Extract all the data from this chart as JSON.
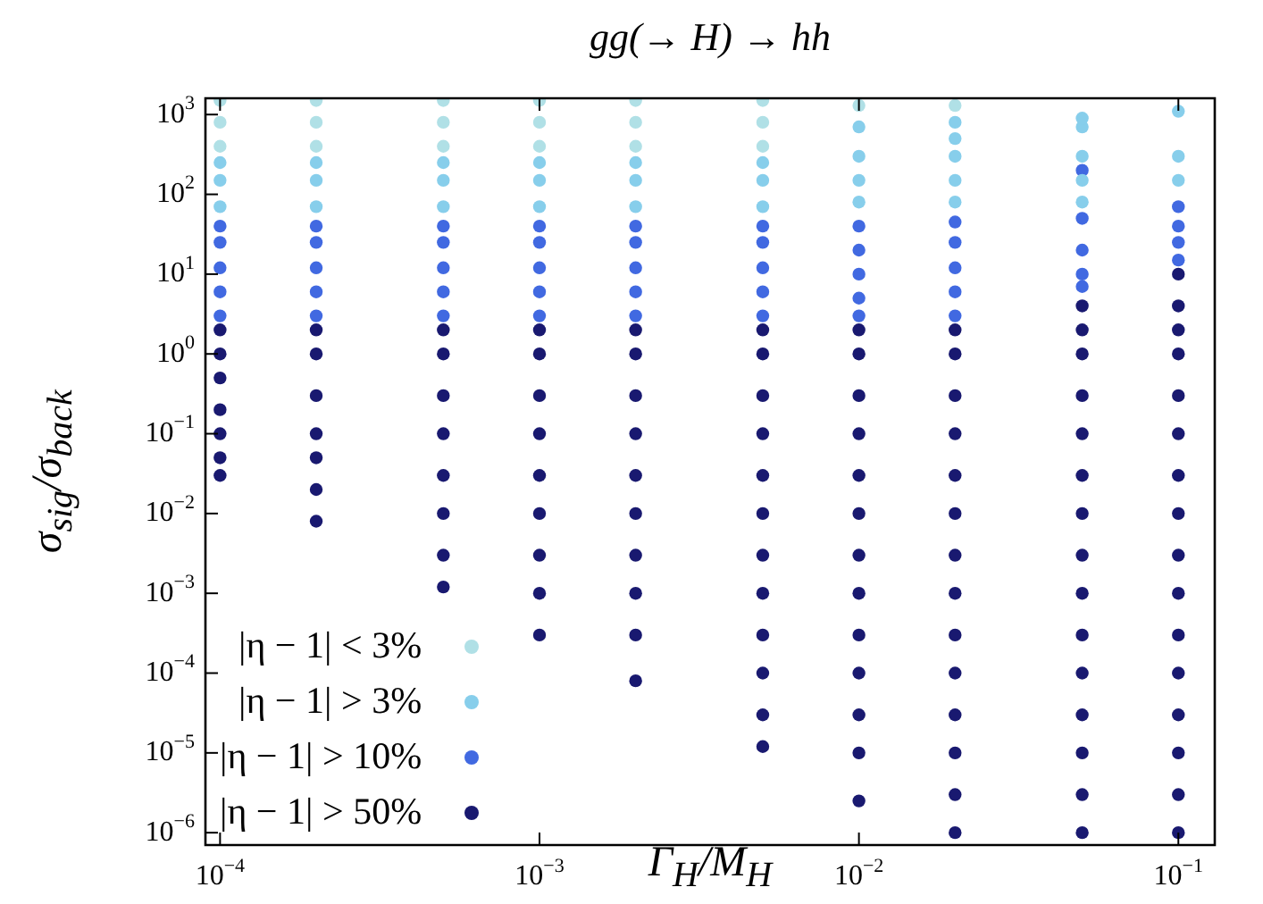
{
  "chart_data": {
    "type": "scatter",
    "title": "gg(→ H) → hh",
    "xlabel": "Γ$_{H}$/M$_{H}$",
    "ylabel": "σ$_{sig}$/σ$_{back}$",
    "log": "xy",
    "grid": false,
    "legend": "bottom left",
    "marker": "circle",
    "xlim": [
      9e-05,
      0.13
    ],
    "ylim": [
      7e-07,
      1600
    ],
    "xticks": [
      {
        "value": 0.0001,
        "label": "10$^{−4}$"
      },
      {
        "value": 0.001,
        "label": "10$^{−3}$"
      },
      {
        "value": 0.01,
        "label": "10$^{−2}$"
      },
      {
        "value": 0.1,
        "label": "10$^{−1}$"
      }
    ],
    "yticks": [
      {
        "value": 1e-06,
        "label": "10$^{−6}$"
      },
      {
        "value": 1e-05,
        "label": "10$^{−5}$"
      },
      {
        "value": 0.0001,
        "label": "10$^{−4}$"
      },
      {
        "value": 0.001,
        "label": "10$^{−3}$"
      },
      {
        "value": 0.01,
        "label": "10$^{−2}$"
      },
      {
        "value": 0.1,
        "label": "10$^{−1}$"
      },
      {
        "value": 1,
        "label": "10$^{0}$"
      },
      {
        "value": 10,
        "label": "10$^{1}$"
      },
      {
        "value": 100,
        "label": "10$^{2}$"
      },
      {
        "value": 1000,
        "label": "10$^{3}$"
      }
    ],
    "series": [
      {
        "name": "|η − 1| < 3%",
        "color": "#b0e0e6",
        "x": [
          0.0001,
          0.0001,
          0.0001,
          0.0002,
          0.0002,
          0.0002,
          0.0005,
          0.0005,
          0.0005,
          0.001,
          0.001,
          0.001,
          0.002,
          0.002,
          0.002,
          0.005,
          0.005,
          0.005,
          0.01,
          0.02
        ],
        "values": [
          400,
          800,
          1500,
          400,
          800,
          1500,
          400,
          800,
          1500,
          400,
          800,
          1500,
          400,
          800,
          1500,
          400,
          800,
          1500,
          1300,
          1300
        ]
      },
      {
        "name": "|η − 1| > 3%",
        "color": "#87ceeb",
        "x": [
          0.0001,
          0.0001,
          0.0001,
          0.0002,
          0.0002,
          0.0002,
          0.0005,
          0.0005,
          0.0005,
          0.001,
          0.001,
          0.001,
          0.002,
          0.002,
          0.002,
          0.005,
          0.005,
          0.005,
          0.01,
          0.01,
          0.01,
          0.01,
          0.02,
          0.02,
          0.02,
          0.02,
          0.02,
          0.05,
          0.05,
          0.05,
          0.05,
          0.05,
          0.1,
          0.1,
          0.1
        ],
        "values": [
          70,
          150,
          250,
          70,
          150,
          250,
          70,
          150,
          250,
          70,
          150,
          250,
          70,
          150,
          250,
          70,
          150,
          250,
          80,
          150,
          300,
          700,
          80,
          150,
          300,
          500,
          800,
          80,
          150,
          300,
          700,
          900,
          150,
          300,
          1100
        ]
      },
      {
        "name": "|η − 1| > 10%",
        "color": "#4169e1",
        "x": [
          0.0001,
          0.0001,
          0.0001,
          0.0001,
          0.0001,
          0.0002,
          0.0002,
          0.0002,
          0.0002,
          0.0002,
          0.0005,
          0.0005,
          0.0005,
          0.0005,
          0.0005,
          0.001,
          0.001,
          0.001,
          0.001,
          0.001,
          0.002,
          0.002,
          0.002,
          0.002,
          0.002,
          0.005,
          0.005,
          0.005,
          0.005,
          0.005,
          0.01,
          0.01,
          0.01,
          0.01,
          0.01,
          0.02,
          0.02,
          0.02,
          0.02,
          0.02,
          0.05,
          0.05,
          0.05,
          0.05,
          0.05,
          0.1,
          0.1,
          0.1,
          0.1
        ],
        "values": [
          3,
          6,
          12,
          25,
          40,
          3,
          6,
          12,
          25,
          40,
          3,
          6,
          12,
          25,
          40,
          3,
          6,
          12,
          25,
          40,
          3,
          6,
          12,
          25,
          40,
          3,
          6,
          12,
          25,
          40,
          3,
          5,
          10,
          20,
          40,
          3,
          6,
          12,
          25,
          45,
          7,
          10,
          20,
          50,
          200,
          15,
          25,
          40,
          70
        ]
      },
      {
        "name": "|η − 1| > 50%",
        "color": "#191970",
        "x": [
          0.0001,
          0.0001,
          0.0001,
          0.0001,
          0.0001,
          0.0001,
          0.0001,
          0.0002,
          0.0002,
          0.0002,
          0.0002,
          0.0002,
          0.0002,
          0.0002,
          0.0005,
          0.0005,
          0.0005,
          0.0005,
          0.0005,
          0.0005,
          0.0005,
          0.0005,
          0.001,
          0.001,
          0.001,
          0.001,
          0.001,
          0.001,
          0.001,
          0.001,
          0.001,
          0.002,
          0.002,
          0.002,
          0.002,
          0.002,
          0.002,
          0.002,
          0.002,
          0.002,
          0.002,
          0.005,
          0.005,
          0.005,
          0.005,
          0.005,
          0.005,
          0.005,
          0.005,
          0.005,
          0.005,
          0.005,
          0.005,
          0.01,
          0.01,
          0.01,
          0.01,
          0.01,
          0.01,
          0.01,
          0.01,
          0.01,
          0.01,
          0.01,
          0.01,
          0.01,
          0.02,
          0.02,
          0.02,
          0.02,
          0.02,
          0.02,
          0.02,
          0.02,
          0.02,
          0.02,
          0.02,
          0.02,
          0.02,
          0.02,
          0.05,
          0.05,
          0.05,
          0.05,
          0.05,
          0.05,
          0.05,
          0.05,
          0.05,
          0.05,
          0.05,
          0.05,
          0.05,
          0.05,
          0.05,
          0.1,
          0.1,
          0.1,
          0.1,
          0.1,
          0.1,
          0.1,
          0.1,
          0.1,
          0.1,
          0.1,
          0.1,
          0.1,
          0.1,
          0.1,
          0.1
        ],
        "values": [
          0.03,
          0.05,
          0.1,
          0.2,
          0.5,
          1,
          2,
          0.008,
          0.02,
          0.05,
          0.1,
          0.3,
          1,
          2,
          0.0012,
          0.003,
          0.01,
          0.03,
          0.1,
          0.3,
          1,
          2,
          0.0003,
          0.001,
          0.003,
          0.01,
          0.03,
          0.1,
          0.3,
          1,
          2,
          8e-05,
          0.0003,
          0.001,
          0.003,
          0.01,
          0.03,
          0.1,
          0.3,
          1,
          2,
          1.2e-05,
          3e-05,
          0.0001,
          0.0003,
          0.001,
          0.003,
          0.01,
          0.03,
          0.1,
          0.3,
          1,
          2,
          2.5e-06,
          1e-05,
          3e-05,
          0.0001,
          0.0003,
          0.001,
          0.003,
          0.01,
          0.03,
          0.1,
          0.3,
          1,
          2,
          1e-06,
          3e-06,
          1e-05,
          3e-05,
          0.0001,
          0.0003,
          0.001,
          0.003,
          0.01,
          0.03,
          0.1,
          0.3,
          1,
          2,
          1e-06,
          3e-06,
          1e-05,
          3e-05,
          0.0001,
          0.0003,
          0.001,
          0.003,
          0.01,
          0.03,
          0.1,
          0.3,
          1,
          2,
          4,
          1e-06,
          3e-06,
          1e-05,
          3e-05,
          0.0001,
          0.0003,
          0.001,
          0.003,
          0.01,
          0.03,
          0.1,
          0.3,
          1,
          2,
          4,
          10
        ]
      }
    ]
  }
}
